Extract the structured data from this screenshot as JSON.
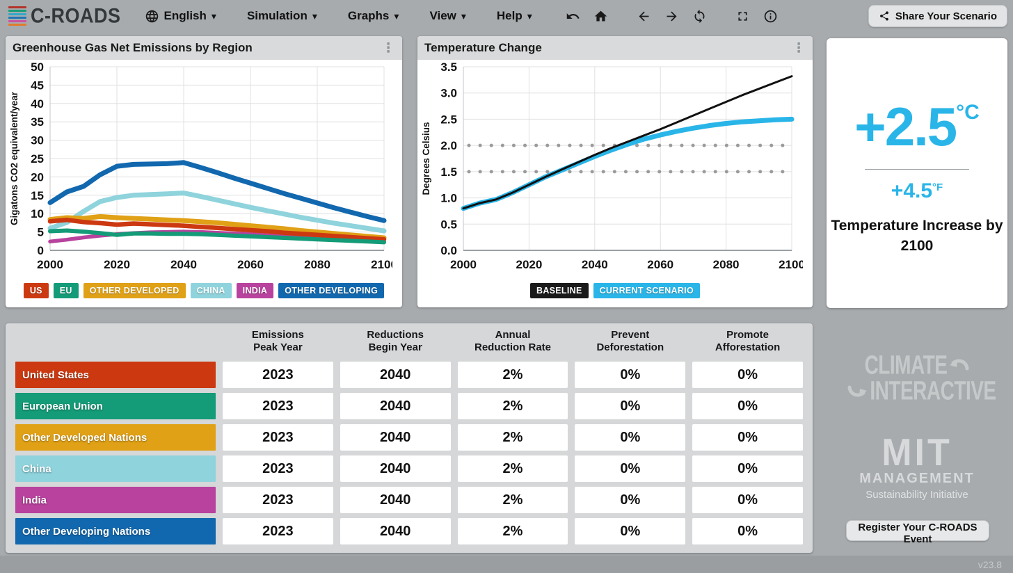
{
  "navbar": {
    "logo_text": "C-ROADS",
    "logo_stripe_colors": [
      "#b2332a",
      "#1a9e77",
      "#35a8c9",
      "#2176b5",
      "#c9539f",
      "#e07b2a"
    ],
    "menus": [
      {
        "label": "English",
        "icon": "globe-icon"
      },
      {
        "label": "Simulation"
      },
      {
        "label": "Graphs"
      },
      {
        "label": "View"
      },
      {
        "label": "Help"
      }
    ],
    "icons": [
      {
        "name": "undo-icon"
      },
      {
        "name": "home-icon"
      },
      {
        "name": "back-arrow-icon"
      },
      {
        "name": "forward-arrow-icon"
      },
      {
        "name": "reload-icon"
      },
      {
        "name": "fullscreen-icon"
      },
      {
        "name": "info-icon"
      }
    ],
    "share_button": "Share Your Scenario"
  },
  "temp_card": {
    "celsius_value": "+2.5",
    "celsius_unit": "°C",
    "fahrenheit_value": "+4.5",
    "fahrenheit_unit": "°F",
    "caption": "Temperature Increase by 2100"
  },
  "table": {
    "headers": [
      "Emissions\nPeak Year",
      "Reductions\nBegin Year",
      "Annual\nReduction Rate",
      "Prevent\nDeforestation",
      "Promote\nAfforestation"
    ],
    "rows": [
      {
        "label": "United States",
        "color": "#cc3911",
        "values": [
          "2023",
          "2040",
          "2%",
          "0%",
          "0%"
        ]
      },
      {
        "label": "European Union",
        "color": "#149b77",
        "values": [
          "2023",
          "2040",
          "2%",
          "0%",
          "0%"
        ]
      },
      {
        "label": "Other Developed Nations",
        "color": "#e0a117",
        "values": [
          "2023",
          "2040",
          "2%",
          "0%",
          "0%"
        ]
      },
      {
        "label": "China",
        "color": "#8fd3dc",
        "values": [
          "2023",
          "2040",
          "2%",
          "0%",
          "0%"
        ]
      },
      {
        "label": "India",
        "color": "#b8429d",
        "values": [
          "2023",
          "2040",
          "2%",
          "0%",
          "0%"
        ]
      },
      {
        "label": "Other Developing Nations",
        "color": "#1268ae",
        "values": [
          "2023",
          "2040",
          "2%",
          "0%",
          "0%"
        ]
      }
    ]
  },
  "branding": {
    "climate_interactive_line1": "CLIMATE",
    "climate_interactive_line2": "INTERACTIVE",
    "mit_line1": "MIT",
    "mit_line2": "MANAGEMENT",
    "mit_line3": "Sustainability Initiative",
    "register_button": "Register Your C-ROADS Event",
    "version": "v23.8"
  },
  "chart_data": [
    {
      "type": "line",
      "title": "Greenhouse Gas Net Emissions by Region",
      "ylabel": "Gigatons CO2 equivalent/year",
      "xlim": [
        2000,
        2100
      ],
      "ylim": [
        0,
        50
      ],
      "xticks": [
        2000,
        2020,
        2040,
        2060,
        2080,
        2100
      ],
      "yticks": [
        0,
        5,
        10,
        15,
        20,
        25,
        30,
        35,
        40,
        45,
        50
      ],
      "ytick_decimals": 0,
      "grid": true,
      "x": [
        2000,
        2005,
        2010,
        2015,
        2020,
        2025,
        2030,
        2035,
        2040,
        2045,
        2050,
        2055,
        2060,
        2065,
        2070,
        2075,
        2080,
        2085,
        2090,
        2095,
        2100
      ],
      "series": [
        {
          "name": "OTHER DEVELOPING",
          "color": "#1268ae",
          "stroke_width": 7,
          "values": [
            13.0,
            15.9,
            17.4,
            20.6,
            22.9,
            23.4,
            23.5,
            23.6,
            23.9,
            22.6,
            21.2,
            19.7,
            18.3,
            16.9,
            15.5,
            14.2,
            12.9,
            11.6,
            10.4,
            9.2,
            8.1
          ]
        },
        {
          "name": "CHINA",
          "color": "#8fd3dc",
          "stroke_width": 7,
          "values": [
            6.0,
            7.6,
            10.6,
            13.3,
            14.4,
            15.0,
            15.2,
            15.4,
            15.6,
            14.7,
            13.7,
            12.7,
            11.7,
            10.8,
            9.9,
            9.0,
            8.2,
            7.4,
            6.7,
            6.0,
            5.3
          ]
        },
        {
          "name": "OTHER DEVELOPED",
          "color": "#e0a117",
          "stroke_width": 7,
          "values": [
            8.4,
            8.9,
            8.7,
            9.2,
            8.9,
            8.7,
            8.5,
            8.3,
            8.1,
            7.8,
            7.5,
            7.1,
            6.7,
            6.3,
            5.9,
            5.4,
            5.0,
            4.6,
            4.2,
            3.8,
            3.4
          ]
        },
        {
          "name": "INDIA",
          "color": "#b8429d",
          "stroke_width": 5.5,
          "values": [
            2.4,
            2.9,
            3.5,
            4.0,
            4.4,
            4.7,
            4.9,
            5.0,
            5.1,
            5.0,
            4.8,
            4.6,
            4.4,
            4.1,
            3.9,
            3.6,
            3.4,
            3.1,
            2.9,
            2.7,
            2.5
          ]
        },
        {
          "name": "US",
          "color": "#cc3911",
          "stroke_width": 6.5,
          "values": [
            7.9,
            8.3,
            7.7,
            7.4,
            7.0,
            7.3,
            7.1,
            6.9,
            6.7,
            6.4,
            6.1,
            5.8,
            5.5,
            5.2,
            4.8,
            4.5,
            4.2,
            3.9,
            3.6,
            3.3,
            3.0
          ]
        },
        {
          "name": "EU",
          "color": "#149b77",
          "stroke_width": 6,
          "values": [
            5.2,
            5.4,
            5.1,
            4.7,
            4.2,
            4.6,
            4.6,
            4.5,
            4.5,
            4.4,
            4.2,
            4.0,
            3.8,
            3.6,
            3.4,
            3.2,
            3.0,
            2.8,
            2.6,
            2.4,
            2.2
          ]
        }
      ],
      "legend": [
        {
          "label": "US",
          "color": "#cc3911"
        },
        {
          "label": "EU",
          "color": "#149b77"
        },
        {
          "label": "OTHER DEVELOPED",
          "color": "#e0a117"
        },
        {
          "label": "CHINA",
          "color": "#8fd3dc"
        },
        {
          "label": "INDIA",
          "color": "#b8429d"
        },
        {
          "label": "OTHER DEVELOPING",
          "color": "#1268ae"
        }
      ],
      "legend_position": "bottom"
    },
    {
      "type": "line",
      "title": "Temperature Change",
      "ylabel": "Degrees Celsius",
      "xlim": [
        2000,
        2100
      ],
      "ylim": [
        0,
        3.5
      ],
      "xticks": [
        2000,
        2020,
        2040,
        2060,
        2080,
        2100
      ],
      "yticks": [
        0,
        0.5,
        1.0,
        1.5,
        2.0,
        2.5,
        3.0,
        3.5
      ],
      "ytick_decimals": 1,
      "grid": true,
      "reflines": [
        1.5,
        2.0
      ],
      "x": [
        2000,
        2005,
        2010,
        2015,
        2020,
        2025,
        2030,
        2035,
        2040,
        2045,
        2050,
        2055,
        2060,
        2065,
        2070,
        2075,
        2080,
        2085,
        2090,
        2095,
        2100
      ],
      "series": [
        {
          "name": "CURRENT SCENARIO",
          "color": "#29b5e8",
          "stroke_width": 7,
          "values": [
            0.8,
            0.9,
            0.97,
            1.1,
            1.25,
            1.4,
            1.53,
            1.66,
            1.79,
            1.91,
            2.02,
            2.12,
            2.2,
            2.27,
            2.33,
            2.38,
            2.42,
            2.45,
            2.47,
            2.49,
            2.5
          ]
        },
        {
          "name": "BASELINE",
          "color": "#111111",
          "stroke_width": 3,
          "values": [
            0.8,
            0.9,
            0.97,
            1.1,
            1.25,
            1.4,
            1.54,
            1.68,
            1.82,
            1.95,
            2.07,
            2.19,
            2.31,
            2.44,
            2.57,
            2.7,
            2.83,
            2.96,
            3.08,
            3.2,
            3.32
          ]
        }
      ],
      "legend": [
        {
          "label": "BASELINE",
          "color": "#1a1a1a"
        },
        {
          "label": "CURRENT SCENARIO",
          "color": "#29b5e8"
        }
      ],
      "legend_position": "bottom"
    }
  ]
}
